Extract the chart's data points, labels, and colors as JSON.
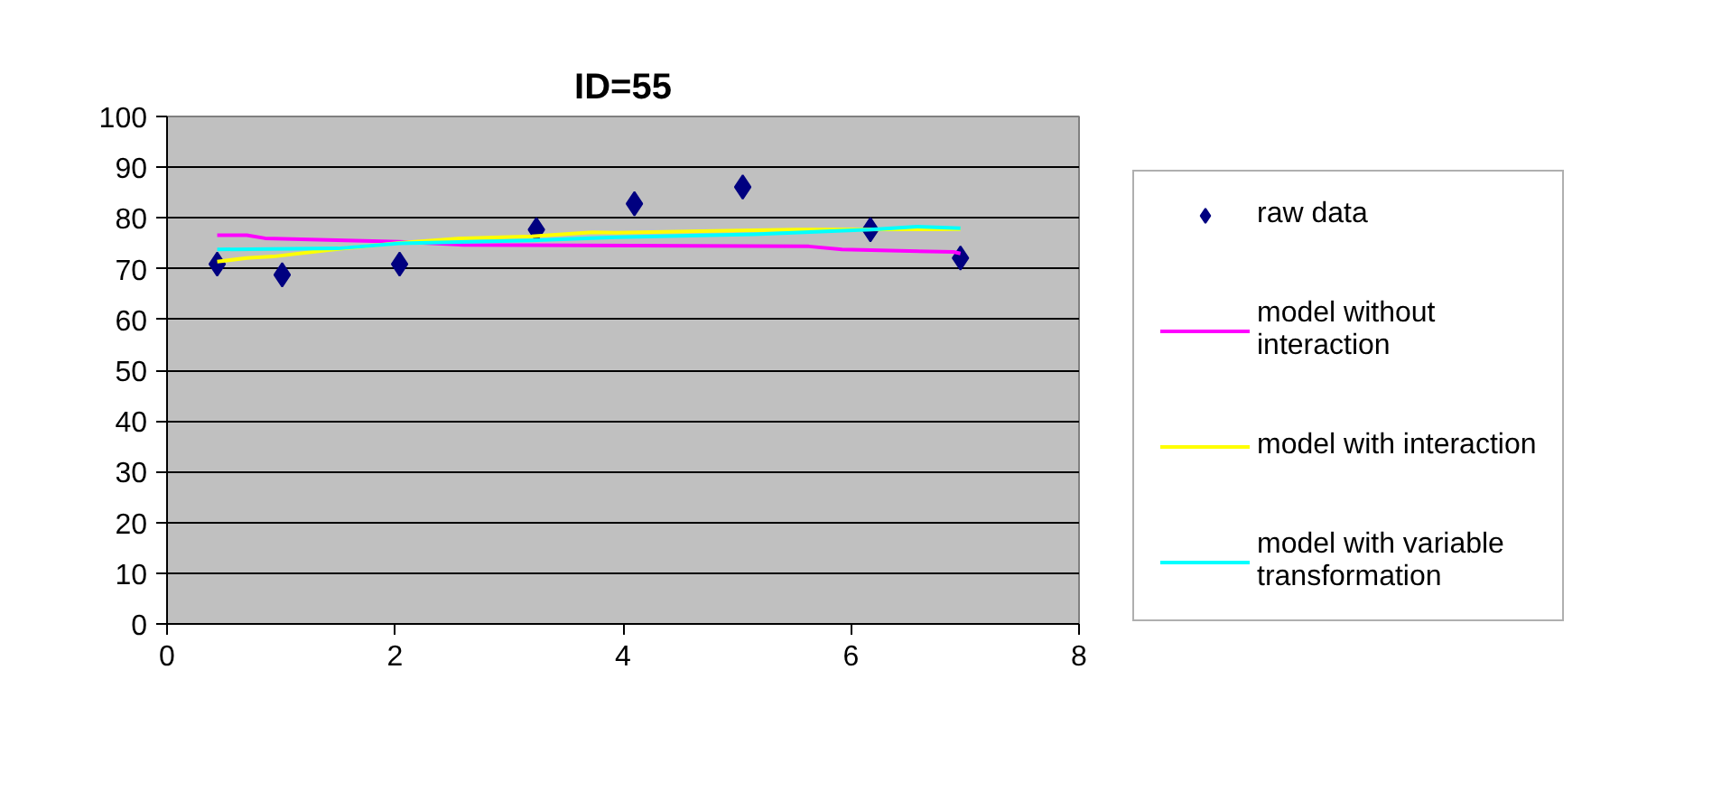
{
  "chart_data": {
    "type": "scatter",
    "title": "ID=55",
    "xlim": [
      0,
      8
    ],
    "xticks": [
      0,
      2,
      4,
      6,
      8
    ],
    "ylim": [
      0,
      100
    ],
    "yticks": [
      0,
      10,
      20,
      30,
      40,
      50,
      60,
      70,
      80,
      90,
      100
    ],
    "grid": "y",
    "legend": "right",
    "series": [
      {
        "name": "raw data",
        "marker": "diamond",
        "color": "#000080",
        "x": [
          0.44,
          1.01,
          2.04,
          3.24,
          4.1,
          5.05,
          6.17,
          6.96
        ],
        "values": [
          70.9,
          68.8,
          70.9,
          77.7,
          82.8,
          86.1,
          77.7,
          72.1
        ]
      },
      {
        "name": "model without interaction",
        "type": "line",
        "marker": "none",
        "color": "#ff00ff",
        "x": [
          0.44,
          0.7,
          0.86,
          2.04,
          2.6,
          5.63,
          5.92,
          6.9,
          6.96
        ],
        "values": [
          76.6,
          76.6,
          76.0,
          75.3,
          74.7,
          74.4,
          73.8,
          73.3,
          73.0
        ]
      },
      {
        "name": "model with interaction",
        "type": "line",
        "marker": "none",
        "color": "#ffff00",
        "x": [
          0.44,
          0.7,
          0.93,
          1.5,
          2.04,
          2.6,
          3.2,
          3.73,
          3.94,
          5.52,
          6.96
        ],
        "values": [
          71.4,
          72.1,
          72.4,
          73.9,
          75.1,
          76.0,
          76.4,
          77.2,
          77.1,
          77.7,
          77.8
        ]
      },
      {
        "name": "model with variable transformation",
        "type": "line",
        "marker": "none",
        "color": "#00ffff",
        "x": [
          0.44,
          1.5,
          2.04,
          3.2,
          3.94,
          5.15,
          6.17,
          6.58,
          6.96
        ],
        "values": [
          73.8,
          74.0,
          75.0,
          75.6,
          76.2,
          76.8,
          77.7,
          78.3,
          78.0
        ]
      }
    ]
  }
}
